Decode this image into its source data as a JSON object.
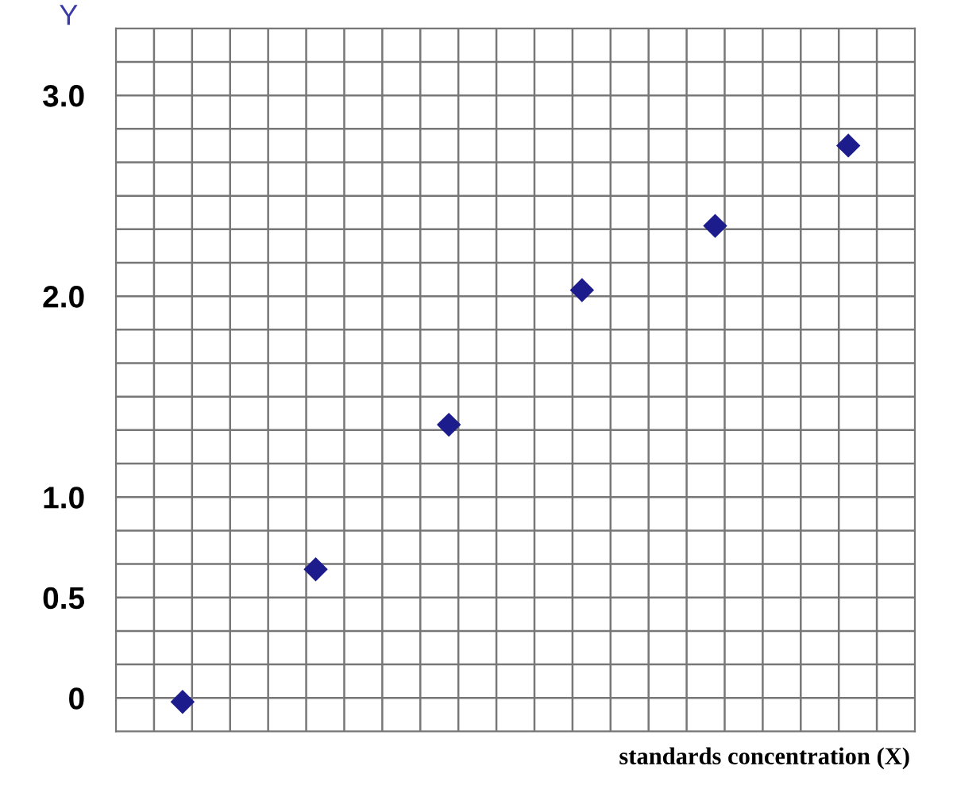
{
  "chart_data": {
    "type": "scatter",
    "xlabel": "standards concentration (X)",
    "ylabel": "Y",
    "categories": [
      null,
      null,
      null,
      null,
      null,
      null
    ],
    "series": [
      {
        "color": "#1c1c8c",
        "values": [
          -0.02,
          0.64,
          1.36,
          2.03,
          2.35,
          2.75
        ]
      }
    ],
    "marker": "diamond",
    "grid": true,
    "tick_labels": "y",
    "ylim": [
      -0.1667,
      3.3333
    ],
    "yticks": [
      {
        "value": 0,
        "label": "0"
      },
      {
        "value": 0.5,
        "label": "0.5"
      },
      {
        "value": 1.0,
        "label": "1.0"
      },
      {
        "value": 2.0,
        "label": "2.0"
      },
      {
        "value": 3.0,
        "label": "3.0"
      }
    ]
  }
}
